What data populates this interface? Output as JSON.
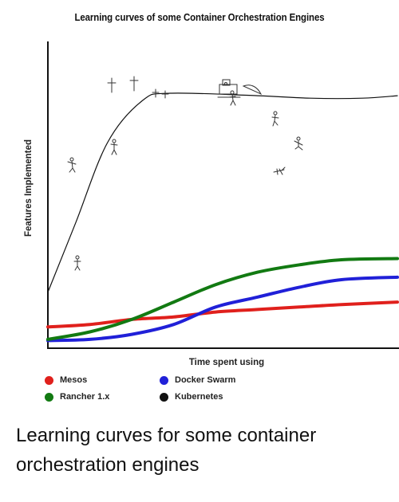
{
  "chart_data": {
    "type": "line",
    "title": "Learning curves of some Container Orchestration Engines",
    "xlabel": "Time spent using",
    "ylabel": "Features Implemented",
    "xlim": [
      0,
      100
    ],
    "ylim": [
      0,
      100
    ],
    "grid": false,
    "legend_position": "bottom",
    "series": [
      {
        "name": "Mesos",
        "color": "#e0201c",
        "x": [
          0,
          12,
          24,
          36,
          48,
          60,
          72,
          84,
          100
        ],
        "y": [
          6,
          7,
          9,
          10,
          12,
          13,
          14,
          15,
          16
        ]
      },
      {
        "name": "Docker Swarm",
        "color": "#2020d8",
        "x": [
          0,
          12,
          24,
          36,
          48,
          60,
          72,
          84,
          100
        ],
        "y": [
          0.5,
          1,
          3,
          7,
          14,
          18,
          22,
          25,
          26
        ]
      },
      {
        "name": "Rancher 1.x",
        "color": "#127a12",
        "x": [
          0,
          12,
          24,
          36,
          48,
          60,
          72,
          84,
          100
        ],
        "y": [
          1,
          4,
          9,
          16,
          23,
          28,
          31,
          33,
          33.5
        ]
      },
      {
        "name": "Kubernetes",
        "color": "#111111",
        "x": [
          0,
          8,
          17,
          27,
          35,
          60,
          75,
          90,
          100
        ],
        "y": [
          20,
          48,
          80,
          97,
          100,
          99,
          98,
          98,
          99
        ]
      }
    ]
  },
  "caption": "Learning curves for some container orchestration engines"
}
